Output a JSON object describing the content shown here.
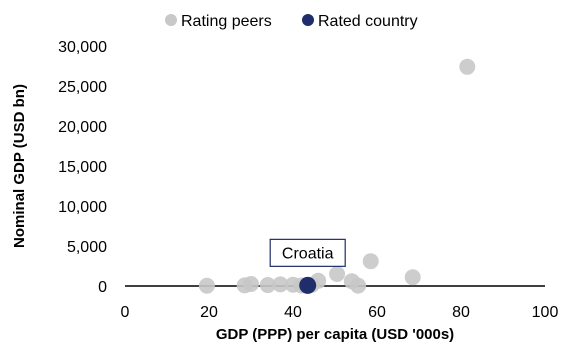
{
  "chart_data": {
    "type": "scatter",
    "title": "",
    "xlabel": "GDP (PPP) per capita (USD '000s)",
    "ylabel": "Nominal GDP (USD bn)",
    "xlim": [
      0,
      100
    ],
    "ylim": [
      0,
      30000
    ],
    "x_ticks": [
      0,
      20,
      40,
      60,
      80,
      100
    ],
    "y_ticks": [
      0,
      5000,
      10000,
      15000,
      20000,
      25000,
      30000
    ],
    "x_tick_labels": [
      "0",
      "20",
      "40",
      "60",
      "80",
      "100"
    ],
    "y_tick_labels": [
      "0",
      "5,000",
      "10,000",
      "15,000",
      "20,000",
      "25,000",
      "30,000"
    ],
    "grid": false,
    "legend_position": "top",
    "series": [
      {
        "name": "Rating peers",
        "color": "#c8c8c8",
        "points": [
          {
            "x": 19.5,
            "y": 30
          },
          {
            "x": 28.5,
            "y": 80
          },
          {
            "x": 30,
            "y": 250
          },
          {
            "x": 34,
            "y": 120
          },
          {
            "x": 37,
            "y": 200
          },
          {
            "x": 40,
            "y": 160
          },
          {
            "x": 42,
            "y": 70
          },
          {
            "x": 44.5,
            "y": 150
          },
          {
            "x": 46,
            "y": 650
          },
          {
            "x": 50.5,
            "y": 1500
          },
          {
            "x": 54,
            "y": 600
          },
          {
            "x": 55.5,
            "y": 50
          },
          {
            "x": 58.5,
            "y": 3100
          },
          {
            "x": 68.5,
            "y": 1100
          },
          {
            "x": 81.5,
            "y": 27400
          }
        ]
      },
      {
        "name": "Rated country",
        "color": "#1f2d6b",
        "points": [
          {
            "x": 43.5,
            "y": 80
          }
        ]
      }
    ],
    "annotations": [
      {
        "text": "Croatia",
        "x": 43.5,
        "y": 80
      }
    ]
  }
}
